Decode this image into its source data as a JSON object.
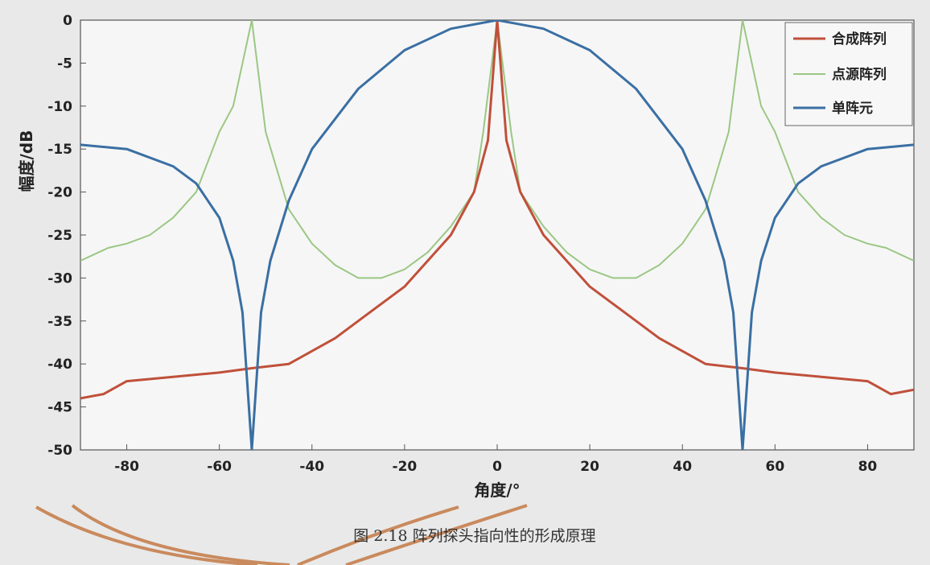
{
  "chart_data": {
    "type": "line",
    "xlabel": "角度/°",
    "ylabel": "幅度/dB",
    "xlim": [
      -90,
      90
    ],
    "ylim": [
      -50,
      0
    ],
    "xticks": [
      -80,
      -60,
      -40,
      -20,
      0,
      20,
      40,
      60,
      80
    ],
    "yticks": [
      0,
      -5,
      -10,
      -15,
      -20,
      -25,
      -30,
      -35,
      -40,
      -45,
      -50
    ],
    "grid": false,
    "legend_position": "top-right",
    "series": [
      {
        "name": "合成阵列",
        "color": "#c0503a",
        "x": [
          -90,
          -85,
          -80,
          -70,
          -60,
          -53,
          -45,
          -40,
          -35,
          -30,
          -25,
          -20,
          -15,
          -10,
          -5,
          -2,
          0,
          2,
          5,
          10,
          15,
          20,
          25,
          30,
          35,
          40,
          45,
          53,
          60,
          70,
          80,
          85,
          90
        ],
        "y": [
          -44,
          -43.5,
          -42,
          -41.5,
          -41,
          -40.5,
          -40,
          -38.5,
          -37,
          -35,
          -33,
          -31,
          -28,
          -25,
          -20,
          -14,
          0,
          -14,
          -20,
          -25,
          -28,
          -31,
          -33,
          -35,
          -37,
          -38.5,
          -40,
          -40.5,
          -41,
          -41.5,
          -42,
          -43.5,
          -43
        ]
      },
      {
        "name": "点源阵列",
        "color": "#9bc784",
        "x": [
          -90,
          -84,
          -80,
          -75,
          -70,
          -65,
          -60,
          -57,
          -53,
          -50,
          -45,
          -40,
          -35,
          -30,
          -25,
          -20,
          -15,
          -10,
          -5,
          -3,
          0,
          3,
          5,
          10,
          15,
          20,
          25,
          30,
          35,
          40,
          45,
          50,
          53,
          57,
          60,
          65,
          70,
          75,
          80,
          84,
          90
        ],
        "y": [
          -28,
          -26.5,
          -26,
          -25,
          -23,
          -20,
          -13,
          -10,
          0,
          -13,
          -22,
          -26,
          -28.5,
          -30,
          -30,
          -29,
          -27,
          -24,
          -20,
          -13,
          0,
          -13,
          -20,
          -24,
          -27,
          -29,
          -30,
          -30,
          -28.5,
          -26,
          -22,
          -13,
          0,
          -10,
          -13,
          -20,
          -23,
          -25,
          -26,
          -26.5,
          -28
        ]
      },
      {
        "name": "单阵元",
        "color": "#3a6fa3",
        "x": [
          -90,
          -80,
          -70,
          -65,
          -60,
          -57,
          -55,
          -53,
          -51,
          -49,
          -45,
          -40,
          -30,
          -20,
          -10,
          0,
          10,
          20,
          30,
          40,
          45,
          49,
          51,
          53,
          55,
          57,
          60,
          65,
          70,
          80,
          90
        ],
        "y": [
          -14.5,
          -15,
          -17,
          -19,
          -23,
          -28,
          -34,
          -50,
          -34,
          -28,
          -21,
          -15,
          -8,
          -3.5,
          -1,
          0,
          -1,
          -3.5,
          -8,
          -15,
          -21,
          -28,
          -34,
          -50,
          -34,
          -28,
          -23,
          -19,
          -17,
          -15,
          -14.5
        ]
      }
    ]
  },
  "caption": "图 2.18  阵列探头指向性的形成原理"
}
